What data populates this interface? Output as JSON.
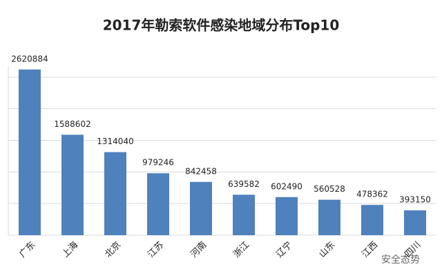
{
  "chart_data": {
    "type": "bar",
    "title": "2017年勒索软件感染地域分布Top10",
    "categories": [
      "广东",
      "上海",
      "北京",
      "江苏",
      "河南",
      "浙江",
      "辽宁",
      "山东",
      "江西",
      "四川"
    ],
    "values": [
      2620884,
      1588602,
      1314040,
      979246,
      842458,
      639582,
      602490,
      560528,
      478362,
      393150
    ],
    "color": "#4f81bd",
    "ylim": [
      0,
      3000000
    ],
    "yticks": [
      0,
      500000,
      1000000,
      1500000,
      2000000,
      2500000
    ],
    "grid": true,
    "watermark": "安全态势"
  }
}
